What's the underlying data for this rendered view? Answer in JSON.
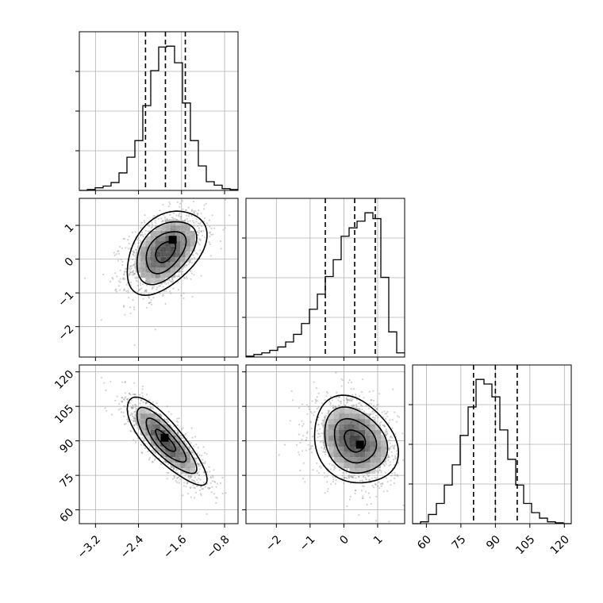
{
  "chart_data": {
    "type": "corner",
    "parameters": [
      {
        "id": "p0",
        "range": [
          -3.5,
          -0.55
        ],
        "axis_ticks": [
          -3.2,
          -2.4,
          -1.6,
          -0.8
        ],
        "axis_tick_labels": [
          "−3.2",
          "−2.4",
          "−1.6",
          "−0.8"
        ],
        "quantiles": [
          -2.27,
          -1.9,
          -1.53
        ],
        "histogram": {
          "bin_width": 0.1475,
          "counts": [
            0,
            1,
            3,
            5,
            9,
            20,
            38,
            57,
            97,
            137,
            164,
            165,
            146,
            100,
            57,
            28,
            10,
            6,
            2,
            1
          ]
        }
      },
      {
        "id": "p1",
        "range": [
          -2.9,
          1.8
        ],
        "axis_ticks": [
          -2,
          -1,
          0,
          1
        ],
        "axis_tick_labels": [
          "−2",
          "−1",
          "0",
          "1"
        ],
        "quantiles": [
          -0.55,
          0.32,
          0.93
        ],
        "histogram": {
          "bin_width": 0.235,
          "counts": [
            1,
            3,
            5,
            8,
            12,
            18,
            27,
            40,
            57,
            75,
            96,
            116,
            144,
            154,
            162,
            172,
            165,
            95,
            30,
            5
          ]
        }
      },
      {
        "id": "p2",
        "range": [
          54,
          123
        ],
        "axis_ticks": [
          60,
          75,
          90,
          105,
          120
        ],
        "axis_tick_labels": [
          "60",
          "75",
          "90",
          "105",
          "120"
        ],
        "quantiles": [
          80.5,
          90,
          99.5
        ],
        "histogram": {
          "bin_width": 3.45,
          "counts": [
            0,
            2,
            10,
            22,
            42,
            64,
            96,
            127,
            157,
            152,
            138,
            102,
            70,
            42,
            22,
            12,
            6,
            2,
            1,
            0
          ]
        }
      }
    ],
    "pairs": [
      {
        "x": "p0",
        "y": "p1",
        "center": [
          -1.9,
          0.22
        ],
        "sigma": [
          0.37,
          0.62
        ],
        "correlation": 0.42,
        "peak": [
          -1.75,
          0.55
        ]
      },
      {
        "x": "p0",
        "y": "p2",
        "center": [
          -1.9,
          90
        ],
        "sigma": [
          0.37,
          9.5
        ],
        "correlation": -0.82,
        "peak": [
          -1.9,
          91
        ]
      },
      {
        "x": "p1",
        "y": "p2",
        "center": [
          0.32,
          90
        ],
        "sigma": [
          0.62,
          9.5
        ],
        "correlation": -0.22,
        "peak": [
          0.5,
          88
        ]
      }
    ],
    "contour_levels_sigma": [
      0.5,
      1,
      1.5,
      2
    ],
    "grid": true,
    "colors": {
      "lines": "#000000",
      "grid": "#b0b0b0",
      "points": "#7f7f7f"
    }
  }
}
